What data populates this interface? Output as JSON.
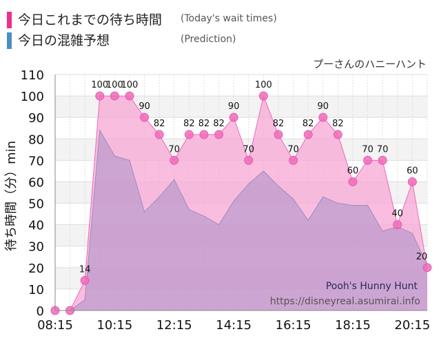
{
  "legend": {
    "today_ja": "今日これまでの待ち時間",
    "today_en": "(Today's wait times)",
    "today_color": "#ee2e8a",
    "pred_ja": "今日の混雑予想",
    "pred_en": "(Prediction)",
    "pred_color": "#4a8fc4"
  },
  "attraction_name": "プーさんのハニーハント",
  "watermark": {
    "title": "Pooh's Hunny Hunt",
    "url": "https://disneyreal.asumirai.info"
  },
  "chart_data": {
    "type": "area",
    "ylabel": "待ち時間（分）min",
    "ylim": [
      0,
      110
    ],
    "yticks": [
      0,
      10,
      20,
      30,
      40,
      50,
      60,
      70,
      80,
      90,
      100,
      110
    ],
    "xlim": [
      "08:15",
      "20:45"
    ],
    "xticks": [
      "08:15",
      "10:15",
      "12:15",
      "14:15",
      "16:15",
      "18:15",
      "20:15"
    ],
    "grid": true,
    "series": [
      {
        "name": "今日これまでの待ち時間",
        "color": "#ee66b8",
        "x": [
          "08:15",
          "08:45",
          "09:15",
          "09:45",
          "10:15",
          "10:45",
          "11:15",
          "11:45",
          "12:15",
          "12:45",
          "13:15",
          "13:45",
          "14:15",
          "14:45",
          "15:15",
          "15:45",
          "16:15",
          "16:45",
          "17:15",
          "17:45",
          "18:15",
          "18:45",
          "19:15",
          "19:45",
          "20:15",
          "20:45"
        ],
        "values": [
          0,
          0,
          14,
          100,
          100,
          100,
          90,
          82,
          70,
          82,
          82,
          82,
          90,
          70,
          100,
          82,
          70,
          82,
          90,
          82,
          60,
          70,
          70,
          40,
          60,
          20
        ]
      },
      {
        "name": "今日の混雑予想",
        "color": "#a98fc6",
        "x": [
          "08:15",
          "08:45",
          "09:15",
          "09:45",
          "10:15",
          "10:45",
          "11:15",
          "11:45",
          "12:15",
          "12:45",
          "13:15",
          "13:45",
          "14:15",
          "14:45",
          "15:15",
          "15:45",
          "16:15",
          "16:45",
          "17:15",
          "17:45",
          "18:15",
          "18:45",
          "19:15",
          "19:45",
          "20:15",
          "20:45"
        ],
        "values": [
          0,
          0,
          5,
          84,
          72,
          70,
          46,
          53,
          61,
          47,
          44,
          40,
          51,
          59,
          65,
          58,
          52,
          42,
          53,
          50,
          49,
          49,
          37,
          39,
          36,
          21
        ]
      }
    ]
  }
}
